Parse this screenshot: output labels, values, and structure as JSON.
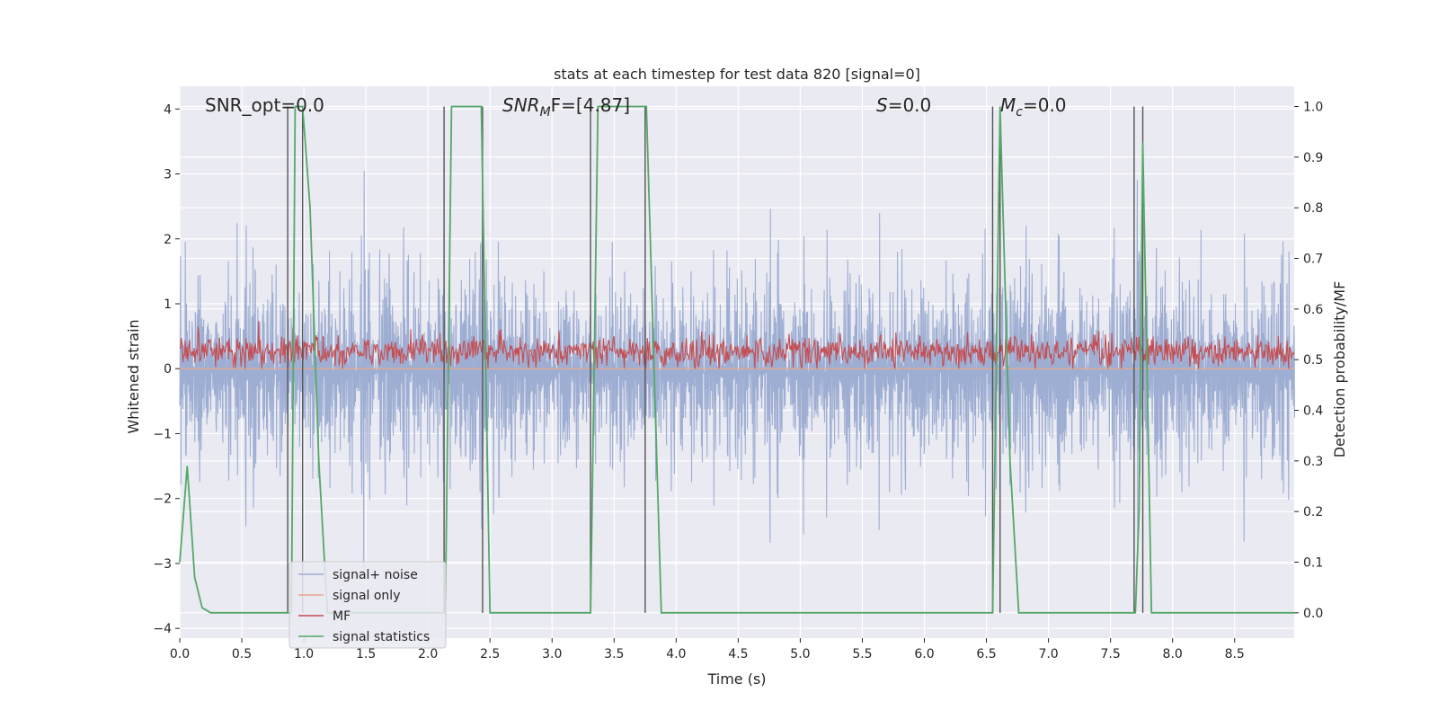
{
  "chart_data": {
    "type": "line",
    "title": "stats at each timestep for test data 820 [signal=0]",
    "xlabel": "Time (s)",
    "ylabel": "Whitened strain",
    "y2label": "Detection probability/MF",
    "xlim": [
      0.0,
      8.98
    ],
    "ylim": [
      -4.15,
      4.35
    ],
    "y2lim": [
      -0.05,
      1.04
    ],
    "xticks": [
      0.0,
      0.5,
      1.0,
      1.5,
      2.0,
      2.5,
      3.0,
      3.5,
      4.0,
      4.5,
      5.0,
      5.5,
      6.0,
      6.5,
      7.0,
      7.5,
      8.0,
      8.5
    ],
    "xtick_labels": [
      "0.0",
      "0.5",
      "1.0",
      "1.5",
      "2.0",
      "2.5",
      "3.0",
      "3.5",
      "4.0",
      "4.5",
      "5.0",
      "5.5",
      "6.0",
      "6.5",
      "7.0",
      "7.5",
      "8.0",
      "8.5"
    ],
    "yticks": [
      -4,
      -3,
      -2,
      -1,
      0,
      1,
      2,
      3,
      4
    ],
    "ytick_labels": [
      "−4",
      "−3",
      "−2",
      "−1",
      "0",
      "1",
      "2",
      "3",
      "4"
    ],
    "y2ticks": [
      0.0,
      0.1,
      0.2,
      0.3,
      0.4,
      0.5,
      0.6,
      0.7,
      0.8,
      0.9,
      1.0
    ],
    "y2tick_labels": [
      "0.0",
      "0.1",
      "0.2",
      "0.3",
      "0.4",
      "0.5",
      "0.6",
      "0.7",
      "0.8",
      "0.9",
      "1.0"
    ],
    "grid": true,
    "legend_position": "lower-left",
    "annotations": {
      "snr_opt": "SNR_opt=0.0",
      "snr_mf_base": "SNR",
      "snr_mf_sub": "M",
      "snr_mf_rest": "F=[4.87]",
      "s_base": "S",
      "s_rest": "=0.0",
      "mc_base": "M",
      "mc_sub": "c",
      "mc_rest": "=0.0"
    },
    "noise_band": {
      "center": -0.05,
      "sigma": 0.85,
      "max_spike": 4.0,
      "min_spike": -3.65,
      "duration": 8.98,
      "samples": 1400
    },
    "mf_band": {
      "center": 0.27,
      "sigma": 0.12,
      "top": 0.9,
      "bottom": 0.0,
      "duration": 8.98,
      "samples": 1400
    },
    "series": [
      {
        "name": "signal+ noise",
        "color": "#9aabd1",
        "axis": "left"
      },
      {
        "name": "signal only",
        "color": "#e8a78c",
        "axis": "left",
        "x": [
          0.0,
          8.98
        ],
        "y": [
          0.0,
          0.0
        ]
      },
      {
        "name": "MF",
        "color": "#c44e52",
        "axis": "left"
      },
      {
        "name": "signal statistics",
        "color": "#55a868",
        "axis": "right",
        "x": [
          0.0,
          0.06,
          0.12,
          0.18,
          0.25,
          0.9,
          0.93,
          0.99,
          1.05,
          1.12,
          1.19,
          2.14,
          2.19,
          2.43,
          2.5,
          3.31,
          3.37,
          3.76,
          3.88,
          6.55,
          6.61,
          6.69,
          6.76,
          7.7,
          7.73,
          7.76,
          7.8,
          7.83,
          8.98
        ],
        "y": [
          0.1,
          0.29,
          0.07,
          0.01,
          0.0,
          0.0,
          1.0,
          1.0,
          0.8,
          0.3,
          0.0,
          0.0,
          1.0,
          1.0,
          0.0,
          0.0,
          1.0,
          1.0,
          0.0,
          0.0,
          1.0,
          0.3,
          0.0,
          0.0,
          0.2,
          0.93,
          0.4,
          0.0,
          0.0
        ]
      }
    ],
    "vlines": [
      0.87,
      0.99,
      2.13,
      2.44,
      3.31,
      3.75,
      6.55,
      6.61,
      7.69,
      7.76
    ],
    "vline_color": "#555555",
    "vline_range": [
      0.0,
      1.0
    ]
  }
}
